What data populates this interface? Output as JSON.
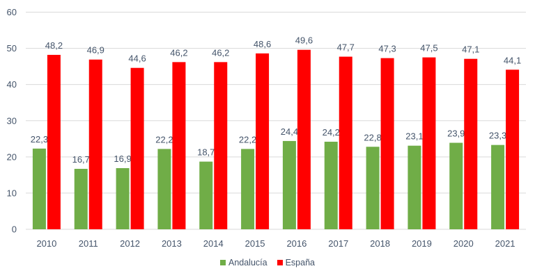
{
  "chart_data": {
    "type": "bar",
    "title": "",
    "xlabel": "",
    "ylabel": "",
    "ylim": [
      0,
      60
    ],
    "yticks": [
      0,
      10,
      20,
      30,
      40,
      50,
      60
    ],
    "grid": true,
    "legend_position": "bottom",
    "categories": [
      "2010",
      "2011",
      "2012",
      "2013",
      "2014",
      "2015",
      "2016",
      "2017",
      "2018",
      "2019",
      "2020",
      "2021"
    ],
    "series": [
      {
        "name": "Andalucía",
        "color": "#70AD47",
        "values": [
          22.3,
          16.7,
          16.9,
          22.2,
          18.7,
          22.2,
          24.4,
          24.2,
          22.8,
          23.1,
          23.9,
          23.3
        ],
        "labels": [
          "22,3",
          "16,7",
          "16,9",
          "22,2",
          "18,7",
          "22,2",
          "24,4",
          "24,2",
          "22,8",
          "23,1",
          "23,9",
          "23,3"
        ]
      },
      {
        "name": "España",
        "color": "#FF0000",
        "values": [
          48.2,
          46.9,
          44.6,
          46.2,
          46.2,
          48.6,
          49.6,
          47.7,
          47.3,
          47.5,
          47.1,
          44.1
        ],
        "labels": [
          "48,2",
          "46,9",
          "44,6",
          "46,2",
          "46,2",
          "48,6",
          "49,6",
          "47,7",
          "47,3",
          "47,5",
          "47,1",
          "44,1"
        ]
      }
    ]
  }
}
